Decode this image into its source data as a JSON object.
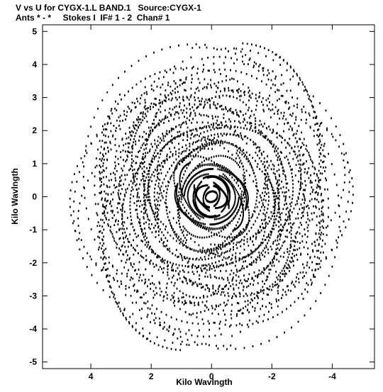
{
  "header": {
    "title_line1": "V vs U for CYGX-1.L BAND.1   Source:CYGX-1",
    "title_line2": "Ants * - *     Stokes I  IF# 1 - 2  Chan# 1"
  },
  "chart_data": {
    "type": "scatter",
    "title": "V vs U for CYGX-1.L BAND.1   Source:CYGX-1",
    "subtitle": "Ants * - *     Stokes I  IF# 1 - 2  Chan# 1",
    "xlabel": "Kilo Wavlngth",
    "ylabel": "Kilo Wavlngth",
    "xlim": [
      5.6,
      -5.4
    ],
    "ylim": [
      -5.2,
      5.2
    ],
    "x_reversed": true,
    "xticks": [
      4,
      2,
      0,
      -2,
      -4
    ],
    "xtick_labels": [
      "4",
      "2",
      "0",
      "-2",
      "-4"
    ],
    "yticks": [
      5,
      4,
      3,
      2,
      1,
      0,
      -1,
      -2,
      -3,
      -4,
      -5
    ],
    "ytick_labels": [
      "5",
      "4",
      "3",
      "2",
      "1",
      "0",
      "-1",
      "-2",
      "-3",
      "-4",
      "-5"
    ],
    "grid": false,
    "legend": "none",
    "marker_color": "#000000",
    "description_of_points": "Dense uv-coverage of elliptical tracks around origin, max radius about 5 kilo-wavelengths",
    "n_tracks": 60,
    "n_points_per_track": 40
  }
}
